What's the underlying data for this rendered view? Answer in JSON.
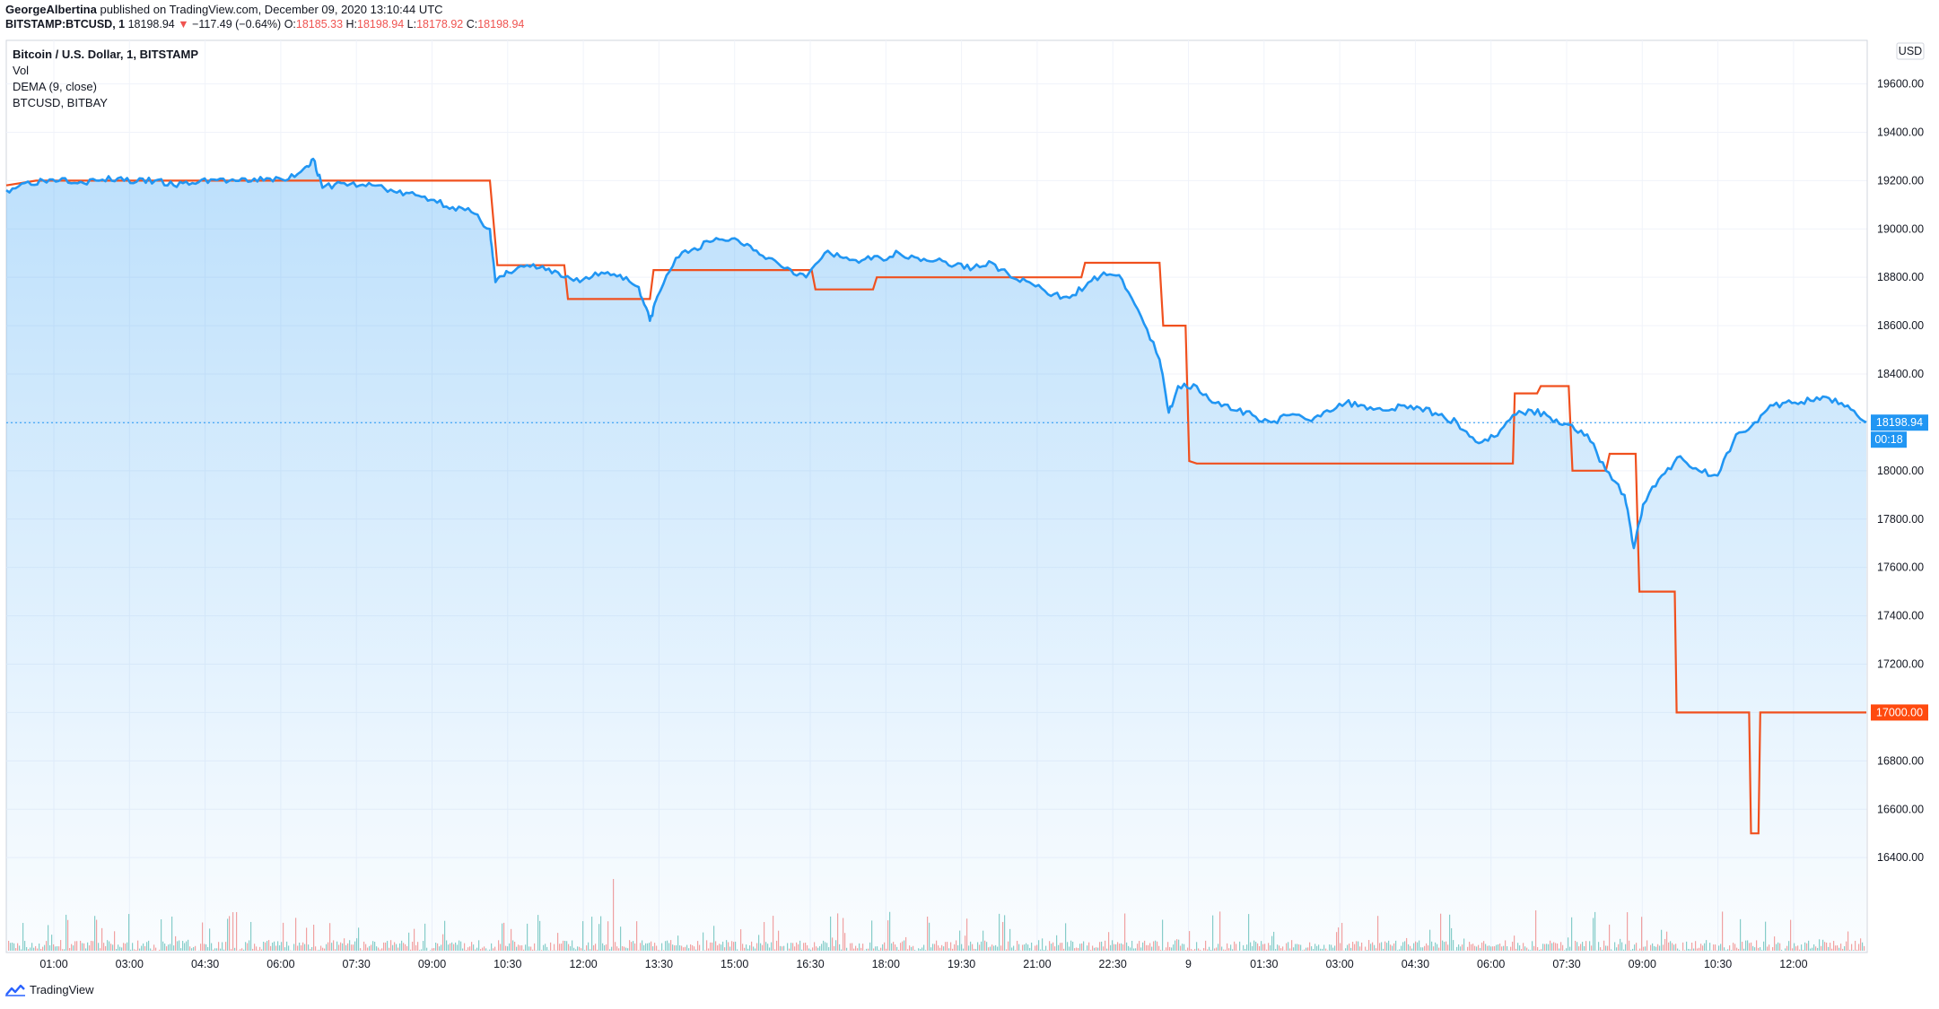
{
  "header": {
    "author": "GeorgeAlbertina",
    "published": "published on TradingView.com, December 09, 2020 13:10:44 UTC",
    "symbol": "BITSTAMP:BTCUSD, 1",
    "last": "18198.94",
    "change": "−117.49 (−0.64%)",
    "o_label": "O:",
    "o_value": "18185.33",
    "h_label": "H:",
    "h_value": "18198.94",
    "l_label": "L:",
    "l_value": "18178.92",
    "c_label": "C:",
    "c_value": "18198.94"
  },
  "legend": {
    "title": "Bitcoin / U.S. Dollar, 1, BITSTAMP",
    "vol": "Vol",
    "dema": "DEMA (9, close)",
    "compare": "BTCUSD, BITBAY"
  },
  "price_axis": {
    "currency": "USD",
    "last_price_tag": "18198.94",
    "countdown_tag": "00:18",
    "bitbay_tag": "17000.00"
  },
  "footer": {
    "brand": "TradingView"
  },
  "colors": {
    "price_line": "#2196f3",
    "compare_line": "#f0501e",
    "up_volume": "#26a69a",
    "down_volume": "#ef5350",
    "last_tag": "#2196f3",
    "bitbay_tag": "#ff4a0f"
  },
  "chart_data": {
    "type": "line",
    "x_ticks": [
      "01:00",
      "03:00",
      "04:30",
      "06:00",
      "07:30",
      "09:00",
      "10:30",
      "12:00",
      "13:30",
      "15:00",
      "16:30",
      "18:00",
      "19:30",
      "21:00",
      "22:30",
      "9",
      "01:30",
      "03:00",
      "04:30",
      "06:00",
      "07:30",
      "09:00",
      "10:30",
      "12:00"
    ],
    "y_ticks": [
      19600,
      19400,
      19200,
      19000,
      18800,
      18600,
      18400,
      18200,
      18000,
      17800,
      17600,
      17400,
      17200,
      17000,
      16800,
      16600,
      16400
    ],
    "ylim": [
      16230,
      19780
    ],
    "x_domain": [
      0,
      100
    ],
    "series": [
      {
        "name": "BTCUSD, BITSTAMP",
        "style": "area",
        "points": [
          [
            0,
            19160
          ],
          [
            1,
            19190
          ],
          [
            2,
            19200
          ],
          [
            3,
            19210
          ],
          [
            4,
            19195
          ],
          [
            5,
            19200
          ],
          [
            6,
            19210
          ],
          [
            7,
            19195
          ],
          [
            8,
            19200
          ],
          [
            9,
            19180
          ],
          [
            10,
            19190
          ],
          [
            11,
            19205
          ],
          [
            12,
            19200
          ],
          [
            13,
            19195
          ],
          [
            14,
            19210
          ],
          [
            15,
            19200
          ],
          [
            16,
            19250
          ],
          [
            16.5,
            19290
          ],
          [
            17,
            19170
          ],
          [
            18,
            19190
          ],
          [
            19,
            19180
          ],
          [
            20,
            19180
          ],
          [
            21,
            19150
          ],
          [
            22,
            19140
          ],
          [
            23,
            19120
          ],
          [
            24,
            19090
          ],
          [
            25,
            19070
          ],
          [
            26,
            19000
          ],
          [
            26.3,
            18780
          ],
          [
            27,
            18820
          ],
          [
            28,
            18850
          ],
          [
            29,
            18830
          ],
          [
            30,
            18800
          ],
          [
            31,
            18790
          ],
          [
            32,
            18820
          ],
          [
            33,
            18810
          ],
          [
            34,
            18760
          ],
          [
            34.6,
            18620
          ],
          [
            35,
            18720
          ],
          [
            36,
            18880
          ],
          [
            37,
            18920
          ],
          [
            38,
            18950
          ],
          [
            39,
            18960
          ],
          [
            40,
            18930
          ],
          [
            41,
            18880
          ],
          [
            42,
            18840
          ],
          [
            43,
            18800
          ],
          [
            44,
            18900
          ],
          [
            45,
            18880
          ],
          [
            46,
            18870
          ],
          [
            47,
            18880
          ],
          [
            48,
            18900
          ],
          [
            49,
            18880
          ],
          [
            50,
            18870
          ],
          [
            51,
            18850
          ],
          [
            52,
            18840
          ],
          [
            53,
            18860
          ],
          [
            54,
            18800
          ],
          [
            55,
            18780
          ],
          [
            56,
            18730
          ],
          [
            57,
            18720
          ],
          [
            58,
            18760
          ],
          [
            59,
            18820
          ],
          [
            60,
            18790
          ],
          [
            61,
            18640
          ],
          [
            62,
            18460
          ],
          [
            62.5,
            18240
          ],
          [
            63,
            18350
          ],
          [
            64,
            18350
          ],
          [
            65,
            18280
          ],
          [
            66,
            18250
          ],
          [
            67,
            18230
          ],
          [
            68,
            18200
          ],
          [
            69,
            18230
          ],
          [
            70,
            18210
          ],
          [
            71,
            18250
          ],
          [
            72,
            18280
          ],
          [
            73,
            18270
          ],
          [
            74,
            18250
          ],
          [
            75,
            18270
          ],
          [
            76,
            18260
          ],
          [
            77,
            18230
          ],
          [
            78,
            18200
          ],
          [
            79,
            18120
          ],
          [
            80,
            18140
          ],
          [
            81,
            18230
          ],
          [
            82,
            18250
          ],
          [
            83,
            18220
          ],
          [
            84,
            18190
          ],
          [
            85,
            18150
          ],
          [
            86,
            18000
          ],
          [
            87,
            17900
          ],
          [
            87.5,
            17680
          ],
          [
            88,
            17860
          ],
          [
            89,
            17980
          ],
          [
            90,
            18060
          ],
          [
            91,
            18000
          ],
          [
            92,
            17980
          ],
          [
            93,
            18150
          ],
          [
            94,
            18200
          ],
          [
            95,
            18270
          ],
          [
            96,
            18280
          ],
          [
            97,
            18290
          ],
          [
            98,
            18300
          ],
          [
            99,
            18270
          ],
          [
            100,
            18200
          ]
        ]
      },
      {
        "name": "BTCUSD, BITBAY",
        "style": "step",
        "points": [
          [
            0,
            19180
          ],
          [
            1.6,
            19200
          ],
          [
            26,
            19200
          ],
          [
            26.4,
            18850
          ],
          [
            30,
            18850
          ],
          [
            30.2,
            18710
          ],
          [
            34.6,
            18710
          ],
          [
            34.8,
            18830
          ],
          [
            43.3,
            18830
          ],
          [
            43.5,
            18750
          ],
          [
            46.6,
            18750
          ],
          [
            46.8,
            18800
          ],
          [
            57.8,
            18800
          ],
          [
            58,
            18860
          ],
          [
            62,
            18860
          ],
          [
            62.2,
            18600
          ],
          [
            63.4,
            18600
          ],
          [
            63.6,
            18040
          ],
          [
            64,
            18030
          ],
          [
            81,
            18030
          ],
          [
            81.1,
            18320
          ],
          [
            82.3,
            18320
          ],
          [
            82.5,
            18350
          ],
          [
            84,
            18350
          ],
          [
            84.2,
            18000
          ],
          [
            86,
            18000
          ],
          [
            86.2,
            18070
          ],
          [
            87.6,
            18070
          ],
          [
            87.8,
            17500
          ],
          [
            89.7,
            17500
          ],
          [
            89.8,
            17000
          ],
          [
            93.7,
            17000
          ],
          [
            93.8,
            16500
          ],
          [
            94.2,
            16500
          ],
          [
            94.3,
            17000
          ],
          [
            100,
            17000
          ]
        ]
      }
    ]
  }
}
